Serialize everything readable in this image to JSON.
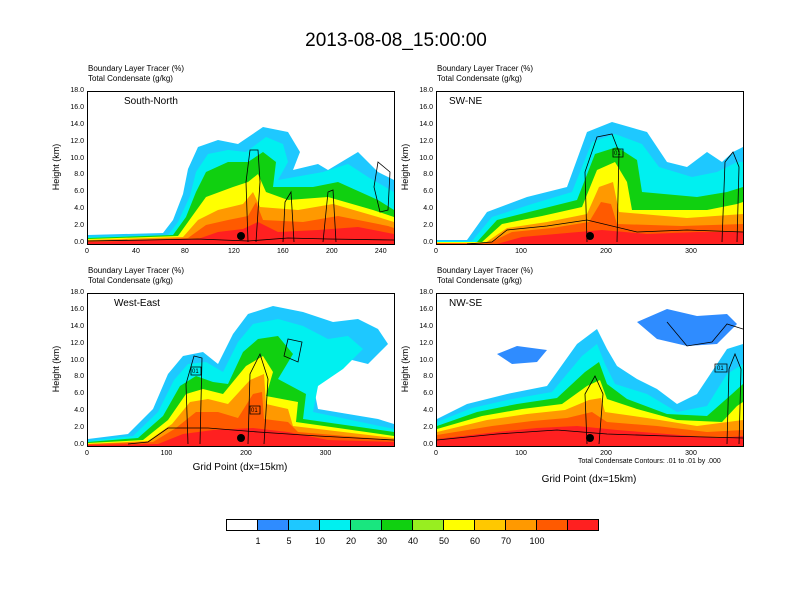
{
  "title": "2013-08-08_15:00:00",
  "header_line1": "Boundary Layer Tracer   (%)",
  "header_line2": "Total Condensate   (g/kg)",
  "y_axis_label": "Height (km)",
  "x_axis_label": "Grid Point (dx=15km)",
  "contour_info": "Total Condensate Contours: .01 to .01 by .000",
  "y_ticks": [
    "18.0",
    "16.0",
    "14.0",
    "12.0",
    "10.0",
    "8.0",
    "6.0",
    "4.0",
    "2.0",
    "0.0"
  ],
  "panels": [
    {
      "label": "South-North",
      "x_ticks": [
        "0",
        "40",
        "80",
        "120",
        "160",
        "200",
        "240"
      ]
    },
    {
      "label": "SW-NE",
      "x_ticks": [
        "0",
        "100",
        "200",
        "300"
      ]
    },
    {
      "label": "West-East",
      "x_ticks": [
        "0",
        "100",
        "200",
        "300"
      ]
    },
    {
      "label": "NW-SE",
      "x_ticks": [
        "0",
        "100",
        "200",
        "300"
      ]
    }
  ],
  "colorbar": {
    "labels": [
      "1",
      "5",
      "10",
      "20",
      "30",
      "40",
      "50",
      "60",
      "70",
      "100"
    ],
    "colors": [
      "#ffffff",
      "#2f8cff",
      "#1ec8ff",
      "#00f0f0",
      "#19e67f",
      "#10d010",
      "#98ee20",
      "#ffff00",
      "#ffc800",
      "#ff9900",
      "#ff5a00",
      "#ff2020"
    ]
  },
  "chart_data": [
    {
      "type": "heatmap",
      "title": "South-North",
      "xlabel": "",
      "ylabel": "Height (km)",
      "xlim": [
        0,
        250
      ],
      "ylim": [
        0,
        18
      ],
      "x_ticks": [
        0,
        40,
        80,
        120,
        160,
        200,
        240
      ],
      "y_ticks": [
        0,
        2,
        4,
        6,
        8,
        10,
        12,
        14,
        16,
        18
      ]
    },
    {
      "type": "heatmap",
      "title": "SW-NE",
      "xlabel": "",
      "ylabel": "Height (km)",
      "xlim": [
        0,
        360
      ],
      "ylim": [
        0,
        18
      ],
      "x_ticks": [
        0,
        100,
        200,
        300
      ],
      "y_ticks": [
        0,
        2,
        4,
        6,
        8,
        10,
        12,
        14,
        16,
        18
      ]
    },
    {
      "type": "heatmap",
      "title": "West-East",
      "xlabel": "Grid Point (dx=15km)",
      "ylabel": "Height (km)",
      "xlim": [
        0,
        385
      ],
      "ylim": [
        0,
        18
      ],
      "x_ticks": [
        0,
        100,
        200,
        300
      ],
      "y_ticks": [
        0,
        2,
        4,
        6,
        8,
        10,
        12,
        14,
        16,
        18
      ]
    },
    {
      "type": "heatmap",
      "title": "NW-SE",
      "xlabel": "Grid Point (dx=15km)",
      "ylabel": "Height (km)",
      "xlim": [
        0,
        360
      ],
      "ylim": [
        0,
        18
      ],
      "x_ticks": [
        0,
        100,
        200,
        300
      ],
      "y_ticks": [
        0,
        2,
        4,
        6,
        8,
        10,
        12,
        14,
        16,
        18
      ]
    }
  ]
}
